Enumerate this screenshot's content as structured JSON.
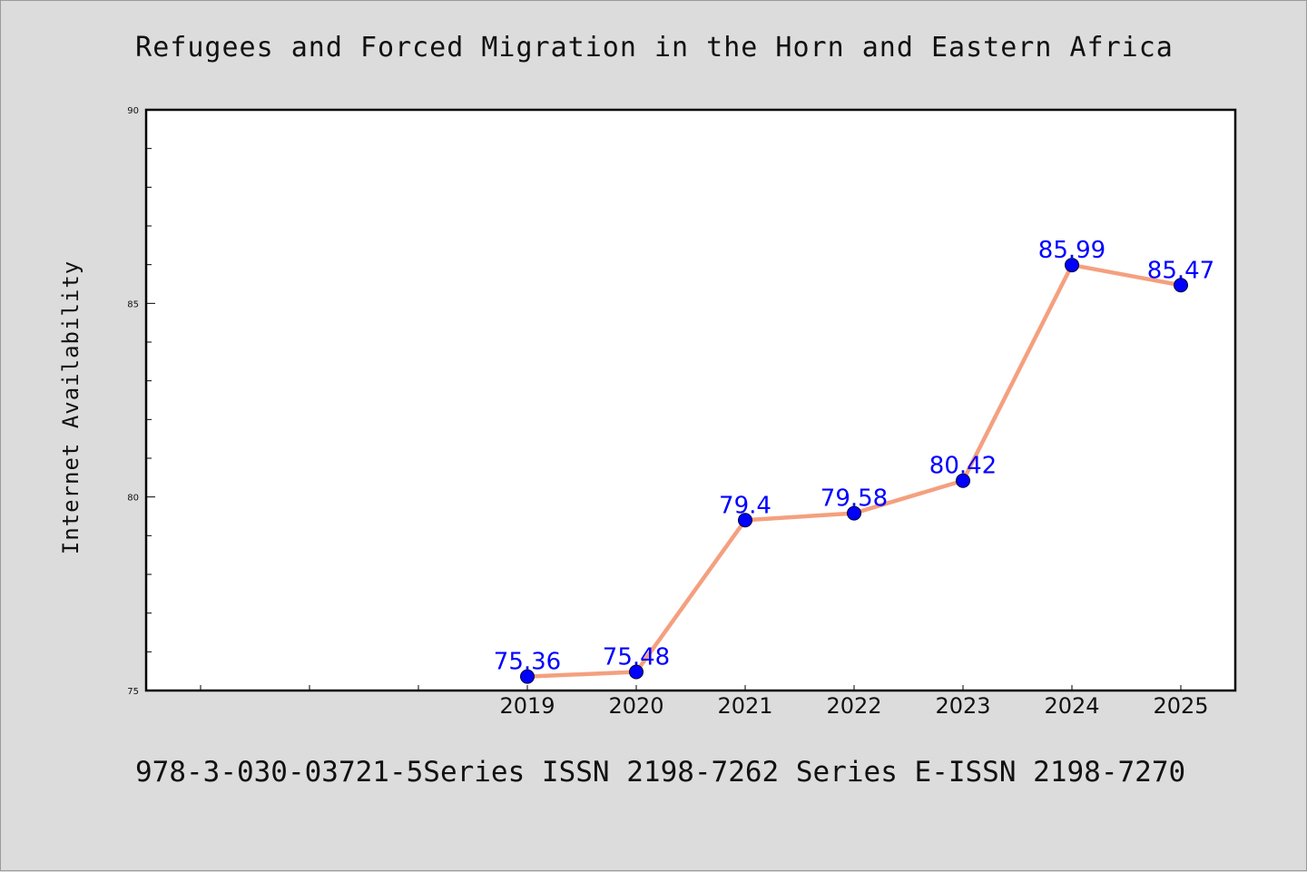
{
  "chart_data": {
    "type": "line",
    "title": "Refugees and Forced Migration in the Horn and Eastern Africa",
    "xlabel": "",
    "ylabel": "Internet Availability",
    "categories": [
      "",
      "",
      "",
      "2019",
      "2020",
      "2021",
      "2022",
      "2023",
      "2024",
      "2025"
    ],
    "series": [
      {
        "values": [
          null,
          null,
          null,
          75.36,
          75.48,
          79.4,
          79.58,
          80.42,
          85.99,
          85.47
        ],
        "labels": [
          "",
          "",
          "",
          "75.36",
          "75.48",
          "79.4",
          "79.58",
          "80.42",
          "85.99",
          "85.47"
        ]
      }
    ],
    "ylim": [
      75,
      90
    ],
    "yticks": [
      75,
      80,
      85,
      90
    ],
    "ytick_labels": [
      "75",
      "80",
      "85",
      "90"
    ],
    "grid": false,
    "line_color": "#f4a07f",
    "marker_color": "#0000ff",
    "label_color": "#0000ff"
  },
  "footer": {
    "text": "978-3-030-03721-5Series ISSN 2198-7262 Series E-ISSN 2198-7270"
  }
}
